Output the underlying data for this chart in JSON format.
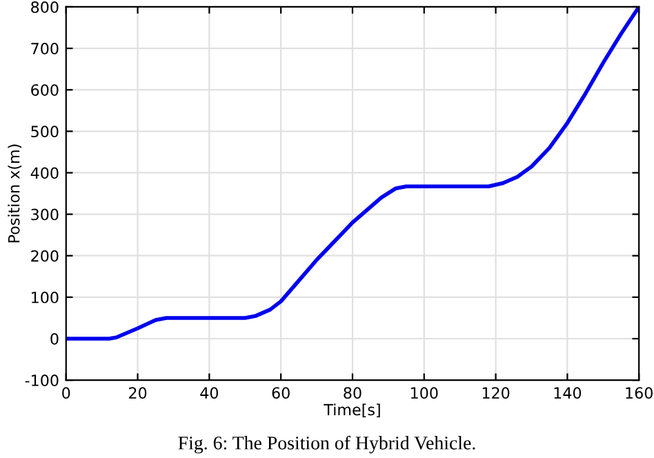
{
  "chart_data": {
    "type": "line",
    "xlabel": "Time[s]",
    "ylabel": "Position x(m)",
    "annotations": [
      "Fig. 6: The Position of Hybrid Vehicle."
    ],
    "x": [
      0,
      12,
      14,
      20,
      25,
      28,
      50,
      53,
      57,
      60,
      65,
      70,
      80,
      88,
      92,
      95,
      118,
      122,
      126,
      130,
      135,
      140,
      145,
      150,
      155,
      160
    ],
    "series": [
      {
        "color": "#0000ee",
        "values": [
          0,
          0,
          3,
          25,
          45,
          50,
          50,
          55,
          70,
          90,
          140,
          190,
          280,
          340,
          362,
          367,
          367,
          375,
          390,
          415,
          460,
          520,
          590,
          665,
          735,
          800
        ]
      }
    ],
    "xlim": [
      0,
      160
    ],
    "xticks": [
      0,
      20,
      40,
      60,
      80,
      100,
      120,
      140,
      160
    ],
    "ylim": [
      -100,
      800
    ],
    "yticks": [
      -100,
      0,
      100,
      200,
      300,
      400,
      500,
      600,
      700,
      800
    ],
    "grid": true,
    "legend": false,
    "marker": "none",
    "line_style": "solid"
  }
}
